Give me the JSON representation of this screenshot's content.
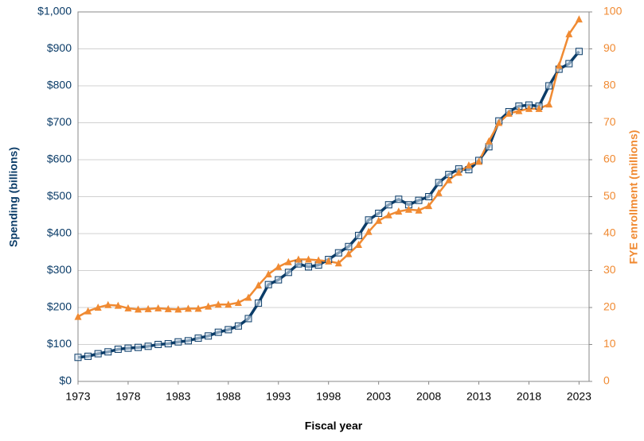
{
  "chart_data": {
    "type": "line",
    "xlabel": "Fiscal year",
    "ylabel": "Spending (billions)",
    "y2label": "FYE enrollment (millions)",
    "x": [
      1973,
      1974,
      1975,
      1976,
      1977,
      1978,
      1979,
      1980,
      1981,
      1982,
      1983,
      1984,
      1985,
      1986,
      1987,
      1988,
      1989,
      1990,
      1991,
      1992,
      1993,
      1994,
      1995,
      1996,
      1997,
      1998,
      1999,
      2000,
      2001,
      2002,
      2003,
      2004,
      2005,
      2006,
      2007,
      2008,
      2009,
      2010,
      2011,
      2012,
      2013,
      2014,
      2015,
      2016,
      2017,
      2018,
      2019,
      2020,
      2021,
      2022,
      2023
    ],
    "series": [
      {
        "name": "Spending (billions)",
        "color": "#0b3c68",
        "marker": "square",
        "axis": "y",
        "values": [
          65,
          68,
          75,
          80,
          87,
          90,
          92,
          95,
          100,
          102,
          107,
          110,
          117,
          123,
          133,
          140,
          150,
          170,
          212,
          262,
          275,
          295,
          318,
          310,
          315,
          330,
          348,
          365,
          395,
          437,
          455,
          478,
          493,
          478,
          490,
          500,
          538,
          560,
          575,
          573,
          598,
          635,
          705,
          730,
          745,
          748,
          745,
          800,
          845,
          860,
          893
        ]
      },
      {
        "name": "FYE enrollment (millions)",
        "color": "#f08a32",
        "marker": "triangle",
        "axis": "y2",
        "values": [
          17.5,
          19,
          20,
          20.7,
          20.5,
          19.8,
          19.5,
          19.6,
          19.8,
          19.6,
          19.5,
          19.7,
          19.7,
          20.3,
          20.8,
          20.8,
          21.3,
          22.7,
          26,
          29,
          31,
          32.3,
          33,
          33,
          32.8,
          32.5,
          32,
          34.5,
          37,
          40.5,
          43.5,
          45,
          46,
          46.5,
          46.3,
          47.5,
          51,
          54.5,
          56.5,
          58.5,
          59.5,
          65,
          70,
          72.5,
          73.2,
          73.8,
          73.8,
          75,
          85.5,
          94,
          98
        ]
      }
    ],
    "xlim": [
      1973,
      2024
    ],
    "xticks": [
      1973,
      1978,
      1983,
      1988,
      1993,
      1998,
      2003,
      2008,
      2013,
      2018,
      2023
    ],
    "ylim": [
      0,
      1000
    ],
    "yticks": [
      {
        "value": 0,
        "label": "$0"
      },
      {
        "value": 100,
        "label": "$100"
      },
      {
        "value": 200,
        "label": "$200"
      },
      {
        "value": 300,
        "label": "$300"
      },
      {
        "value": 400,
        "label": "$400"
      },
      {
        "value": 500,
        "label": "$500"
      },
      {
        "value": 600,
        "label": "$600"
      },
      {
        "value": 700,
        "label": "$700"
      },
      {
        "value": 800,
        "label": "$800"
      },
      {
        "value": 900,
        "label": "$900"
      },
      {
        "value": 1000,
        "label": "$1,000"
      }
    ],
    "y2lim": [
      0,
      100
    ],
    "y2ticks": [
      0,
      10,
      20,
      30,
      40,
      50,
      60,
      70,
      80,
      90,
      100
    ],
    "grid": true
  }
}
